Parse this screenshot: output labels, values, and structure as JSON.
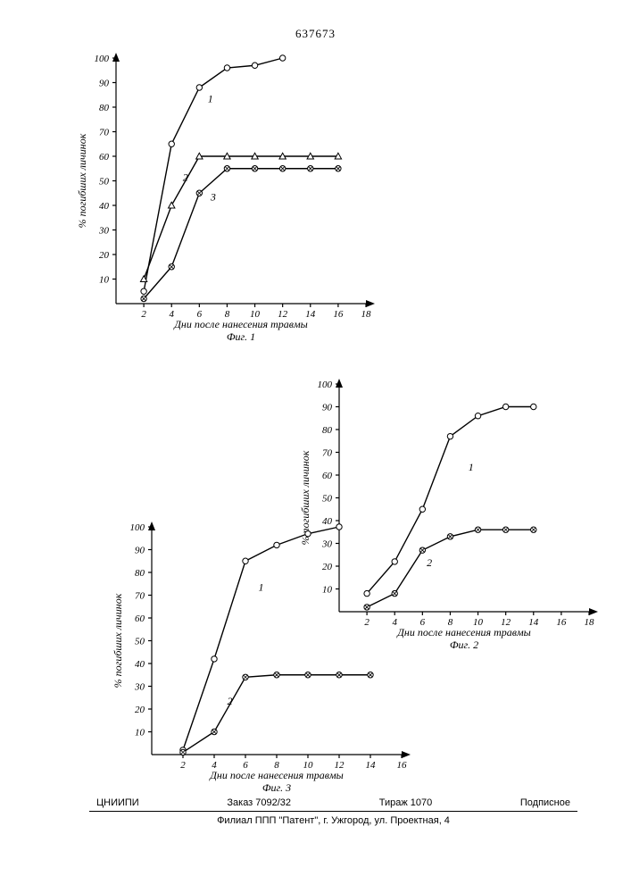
{
  "pageNumber": "637673",
  "footer": {
    "org": "ЦНИИПИ",
    "order": "Заказ 7092/32",
    "tiraz": "Тираж 1070",
    "signed": "Подписное",
    "address": "Филиал ППП \"Патент\", г. Ужгород, ул. Проектная, 4"
  },
  "chart_style": {
    "font_family": "Times New Roman, serif",
    "axis_stroke": "#000000",
    "axis_width": 1.2,
    "tick_fontsize": 11,
    "label_fontsize": 12,
    "marker_fill": "#ffffff",
    "marker_stroke": "#000000",
    "marker_r_open": 3.2,
    "marker_r_solid": 2.8,
    "line_width": 1.4
  },
  "fig1": {
    "type": "line",
    "title": "Фиг. 1",
    "x": {
      "label": "Дни после нанесения травмы",
      "min": 0,
      "max": 18,
      "ticks": [
        2,
        4,
        6,
        8,
        10,
        12,
        14,
        16,
        18
      ]
    },
    "y": {
      "label": "% погибших личинок",
      "min": 0,
      "max": 100,
      "ticks": [
        10,
        20,
        30,
        40,
        50,
        60,
        70,
        80,
        90,
        100
      ]
    },
    "series": [
      {
        "id": "1",
        "marker": "circle-open",
        "data": [
          [
            2,
            5
          ],
          [
            4,
            65
          ],
          [
            6,
            88
          ],
          [
            8,
            96
          ],
          [
            10,
            97
          ],
          [
            12,
            100
          ]
        ]
      },
      {
        "id": "2",
        "marker": "triangle-open",
        "data": [
          [
            2,
            10
          ],
          [
            4,
            40
          ],
          [
            6,
            60
          ],
          [
            8,
            60
          ],
          [
            10,
            60
          ],
          [
            12,
            60
          ],
          [
            14,
            60
          ],
          [
            16,
            60
          ]
        ]
      },
      {
        "id": "3",
        "marker": "circle-cross",
        "data": [
          [
            2,
            2
          ],
          [
            4,
            15
          ],
          [
            6,
            45
          ],
          [
            8,
            55
          ],
          [
            10,
            55
          ],
          [
            12,
            55
          ],
          [
            14,
            55
          ],
          [
            16,
            55
          ]
        ]
      }
    ],
    "series_labels_xy": {
      "1": [
        6.8,
        82
      ],
      "2": [
        5,
        50
      ],
      "3": [
        7,
        42
      ]
    }
  },
  "fig2": {
    "type": "line",
    "title": "Фиг. 2",
    "x": {
      "label": "Дни после нанесения травмы",
      "min": 0,
      "max": 18,
      "ticks": [
        2,
        4,
        6,
        8,
        10,
        12,
        14,
        16,
        18
      ]
    },
    "y": {
      "label": "% погибших личинок",
      "min": 0,
      "max": 100,
      "ticks": [
        10,
        20,
        30,
        40,
        50,
        60,
        70,
        80,
        90,
        100
      ]
    },
    "series": [
      {
        "id": "1",
        "marker": "circle-open",
        "data": [
          [
            2,
            8
          ],
          [
            4,
            22
          ],
          [
            6,
            45
          ],
          [
            8,
            77
          ],
          [
            10,
            86
          ],
          [
            12,
            90
          ],
          [
            14,
            90
          ]
        ]
      },
      {
        "id": "2",
        "marker": "circle-cross",
        "data": [
          [
            2,
            2
          ],
          [
            4,
            8
          ],
          [
            6,
            27
          ],
          [
            8,
            33
          ],
          [
            10,
            36
          ],
          [
            12,
            36
          ],
          [
            14,
            36
          ]
        ]
      }
    ],
    "series_labels_xy": {
      "1": [
        9.5,
        62
      ],
      "2": [
        6.5,
        20
      ]
    }
  },
  "fig3": {
    "type": "line",
    "title": "Фиг. 3",
    "x": {
      "label": "Дни после нанесения травмы",
      "min": 0,
      "max": 16,
      "ticks": [
        2,
        4,
        6,
        8,
        10,
        12,
        14,
        16
      ]
    },
    "y": {
      "label": "% погибших личинок",
      "min": 0,
      "max": 100,
      "ticks": [
        10,
        20,
        30,
        40,
        50,
        60,
        70,
        80,
        90,
        100
      ]
    },
    "series": [
      {
        "id": "1",
        "marker": "circle-open",
        "data": [
          [
            2,
            2
          ],
          [
            4,
            42
          ],
          [
            6,
            85
          ],
          [
            8,
            92
          ],
          [
            10,
            97
          ],
          [
            12,
            100
          ]
        ]
      },
      {
        "id": "2",
        "marker": "circle-cross",
        "data": [
          [
            2,
            1
          ],
          [
            4,
            10
          ],
          [
            6,
            34
          ],
          [
            8,
            35
          ],
          [
            10,
            35
          ],
          [
            12,
            35
          ],
          [
            14,
            35
          ]
        ]
      }
    ],
    "series_labels_xy": {
      "1": [
        7,
        72
      ],
      "2": [
        5,
        22
      ]
    }
  }
}
